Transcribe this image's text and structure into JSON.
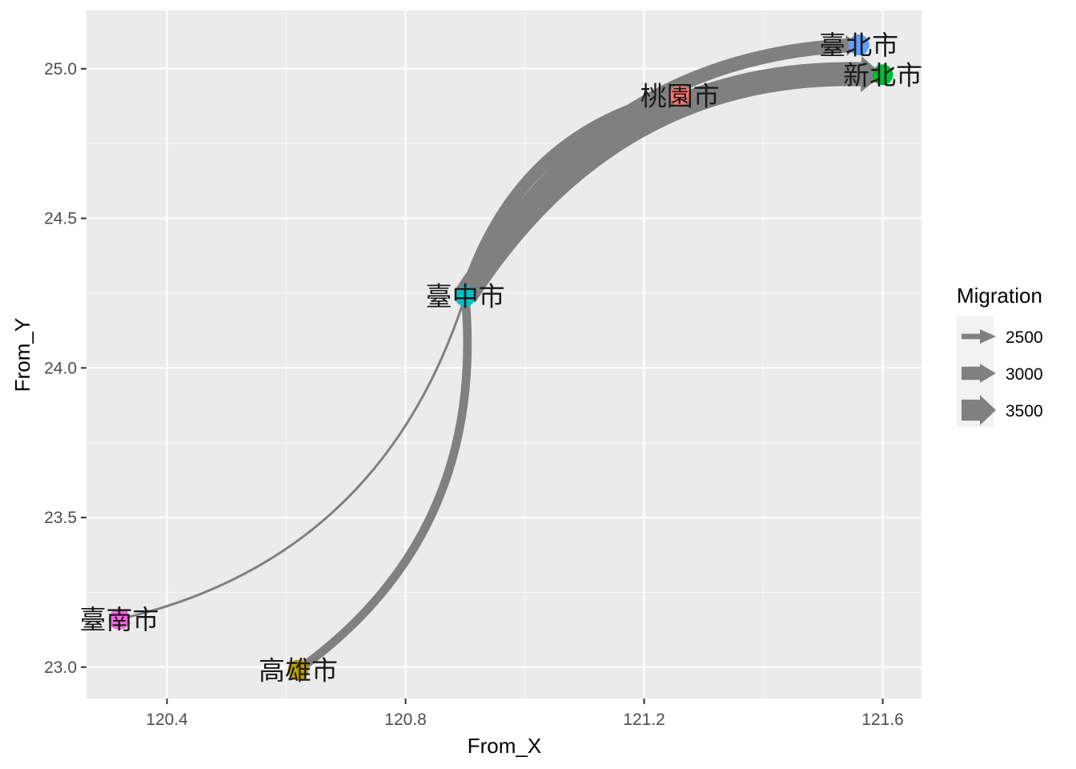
{
  "chart_data": {
    "type": "flow-map",
    "xlabel": "From_X",
    "ylabel": "From_Y",
    "xlim": [
      120.265,
      121.665
    ],
    "ylim": [
      22.895,
      25.195
    ],
    "x_ticks": [
      120.4,
      120.8,
      121.2,
      121.6
    ],
    "x_tick_labels": [
      "120.4",
      "120.8",
      "121.2",
      "121.6"
    ],
    "y_ticks": [
      23.0,
      23.5,
      24.0,
      24.5,
      25.0
    ],
    "y_tick_labels": [
      "23.0",
      "23.5",
      "24.0",
      "24.5",
      "25.0"
    ],
    "grid": true,
    "panel_background": "#ebebeb",
    "flow_color": "#808080",
    "nodes": [
      {
        "name": "桃園市",
        "x": 121.26,
        "y": 24.91,
        "color": "#f8766d"
      },
      {
        "name": "高雄市",
        "x": 120.62,
        "y": 22.99,
        "color": "#b79f00"
      },
      {
        "name": "新北市",
        "x": 121.6,
        "y": 24.98,
        "color": "#00ba38"
      },
      {
        "name": "臺中市",
        "x": 120.9,
        "y": 24.24,
        "color": "#00bfc4"
      },
      {
        "name": "臺北市",
        "x": 121.56,
        "y": 25.08,
        "color": "#619cff"
      },
      {
        "name": "臺南市",
        "x": 120.32,
        "y": 23.16,
        "color": "#f564e3"
      }
    ],
    "flows": [
      {
        "from": "臺中市",
        "to": "臺南市",
        "migration": 2300
      },
      {
        "from": "臺中市",
        "to": "高雄市",
        "migration": 2700
      },
      {
        "from": "臺中市",
        "to": "桃園市",
        "migration": 2950
      },
      {
        "from": "臺中市",
        "to": "臺北市",
        "migration": 3050
      },
      {
        "from": "臺中市",
        "to": "新北市",
        "migration": 3700
      }
    ],
    "legend": {
      "title": "Migration",
      "placement": "right",
      "entries": [
        {
          "label": "2500",
          "value": 2500
        },
        {
          "label": "3000",
          "value": 3000
        },
        {
          "label": "3500",
          "value": 3500
        }
      ]
    }
  }
}
